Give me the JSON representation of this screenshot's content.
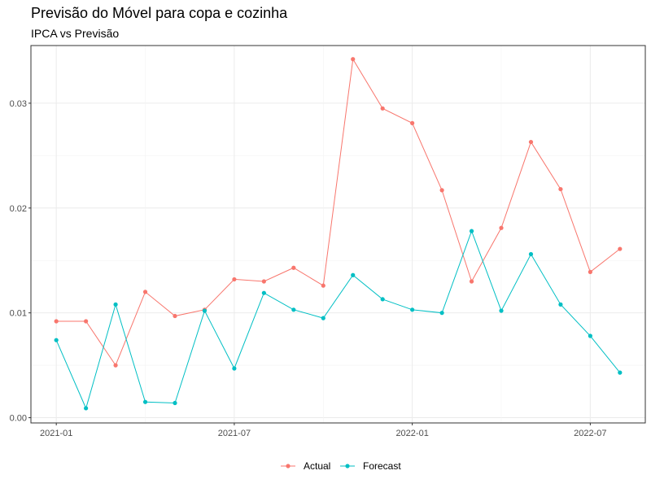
{
  "chart_data": {
    "type": "line",
    "title": "Previsão do Móvel para copa e cozinha",
    "subtitle": "IPCA vs Previsão",
    "xlabel": "",
    "ylabel": "",
    "x": [
      "2021-01",
      "2021-02",
      "2021-03",
      "2021-04",
      "2021-05",
      "2021-06",
      "2021-07",
      "2021-08",
      "2021-09",
      "2021-10",
      "2021-11",
      "2021-12",
      "2022-01",
      "2022-02",
      "2022-03",
      "2022-04",
      "2022-05",
      "2022-06",
      "2022-07",
      "2022-08"
    ],
    "x_ticks": [
      "2021-01",
      "2021-07",
      "2022-01",
      "2022-07"
    ],
    "y_ticks": [
      0.0,
      0.01,
      0.02,
      0.03
    ],
    "y_tick_labels": [
      "0.00",
      "0.01",
      "0.02",
      "0.03"
    ],
    "ylim": [
      -0.0005,
      0.0355
    ],
    "grid": true,
    "legend_position": "bottom",
    "series": [
      {
        "name": "Actual",
        "color": "#F8766D",
        "values": [
          0.0092,
          0.0092,
          0.005,
          0.012,
          0.0097,
          0.0103,
          0.0132,
          0.013,
          0.0143,
          0.0126,
          0.0342,
          0.0295,
          0.0281,
          0.0217,
          0.013,
          0.0181,
          0.0263,
          0.0218,
          0.0139,
          0.0161
        ]
      },
      {
        "name": "Forecast",
        "color": "#00BFC4",
        "values": [
          0.0074,
          0.0009,
          0.0108,
          0.0015,
          0.0014,
          0.0102,
          0.0047,
          0.0119,
          0.0103,
          0.0095,
          0.0136,
          0.0113,
          0.0103,
          0.01,
          0.0178,
          0.0102,
          0.0156,
          0.0108,
          0.0078,
          0.0043
        ]
      }
    ]
  }
}
